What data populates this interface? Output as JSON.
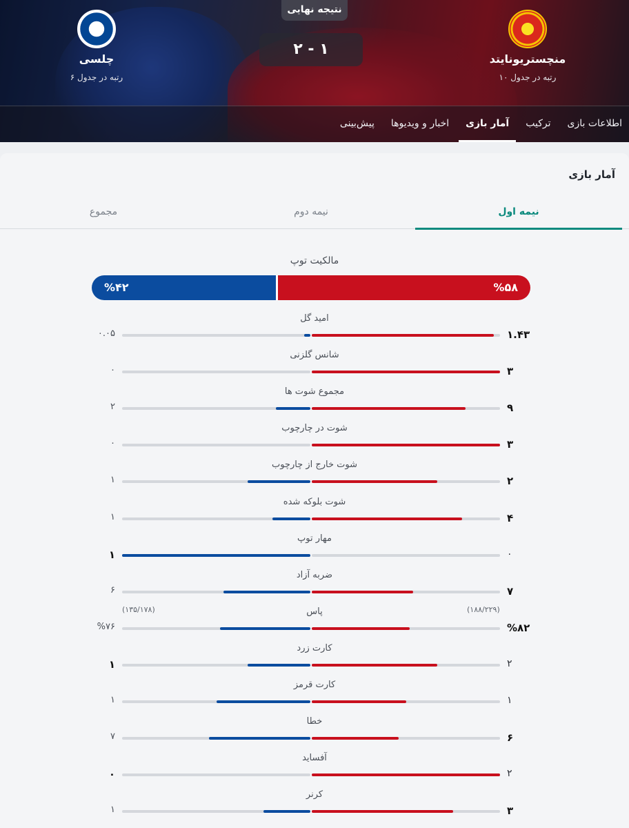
{
  "match": {
    "status": "نتیجه نهایی",
    "score": "۲ - ۱",
    "home": {
      "name": "منچستریونایتد",
      "rank": "رتبه در جدول ۱۰",
      "color": "#c8101e"
    },
    "away": {
      "name": "چلسی",
      "rank": "رتبه در جدول ۶",
      "color": "#0b4c9f"
    }
  },
  "nav": {
    "tabs": [
      {
        "label": "اطلاعات بازی"
      },
      {
        "label": "ترکیب"
      },
      {
        "label": "آمار بازی"
      },
      {
        "label": "اخبار و ویدیوها"
      },
      {
        "label": "پیش‌بینی"
      }
    ],
    "active": "آمار بازی"
  },
  "card": {
    "title": "آمار بازی",
    "period_tabs": [
      "نیمه اول",
      "نیمه دوم",
      "مجموع"
    ],
    "active_period": "نیمه اول",
    "accent": "#0c8a7e"
  },
  "possession": {
    "label": "مالکیت توپ",
    "home": "%۵۸",
    "away": "%۴۲",
    "home_value": 58,
    "away_value": 42
  },
  "stats": [
    {
      "label": "امید گل",
      "home": "۱.۴۳",
      "away": "۰.۰۵",
      "home_value": 1.43,
      "away_value": 0.05,
      "winner": "home"
    },
    {
      "label": "شانس گلزنی",
      "home": "۳",
      "away": "۰",
      "home_value": 3,
      "away_value": 0,
      "winner": "home"
    },
    {
      "label": "مجموع شوت ها",
      "home": "۹",
      "away": "۲",
      "home_value": 9,
      "away_value": 2,
      "winner": "home"
    },
    {
      "label": "شوت در چارچوب",
      "home": "۳",
      "away": "۰",
      "home_value": 3,
      "away_value": 0,
      "winner": "home"
    },
    {
      "label": "شوت خارج از چارچوب",
      "home": "۲",
      "away": "۱",
      "home_value": 2,
      "away_value": 1,
      "winner": "home"
    },
    {
      "label": "شوت بلوکه شده",
      "home": "۴",
      "away": "۱",
      "home_value": 4,
      "away_value": 1,
      "winner": "home"
    },
    {
      "label": "مهار توپ",
      "home": "۰",
      "away": "۱",
      "home_value": 0,
      "away_value": 1,
      "winner": "away"
    },
    {
      "label": "ضربه آزاد",
      "home": "۷",
      "away": "۶",
      "home_value": 7,
      "away_value": 6,
      "winner": "home"
    },
    {
      "label": "پاس",
      "home": "%۸۲",
      "away": "%۷۶",
      "home_sub": "(۱۸۸/۲۲۹)",
      "away_sub": "(۱۳۵/۱۷۸)",
      "home_value": 82,
      "away_value": 76,
      "winner": "home"
    },
    {
      "label": "کارت زرد",
      "home": "۲",
      "away": "۱",
      "home_value": 2,
      "away_value": 1,
      "winner": "away"
    },
    {
      "label": "کارت قرمز",
      "home": "۱",
      "away": "۱",
      "home_value": 1,
      "away_value": 1,
      "winner": "none"
    },
    {
      "label": "خطا",
      "home": "۶",
      "away": "۷",
      "home_value": 6,
      "away_value": 7,
      "winner": "home"
    },
    {
      "label": "آفساید",
      "home": "۲",
      "away": "۰",
      "home_value": 2,
      "away_value": 0,
      "winner": "away"
    },
    {
      "label": "کرنر",
      "home": "۳",
      "away": "۱",
      "home_value": 3,
      "away_value": 1,
      "winner": "home"
    }
  ]
}
